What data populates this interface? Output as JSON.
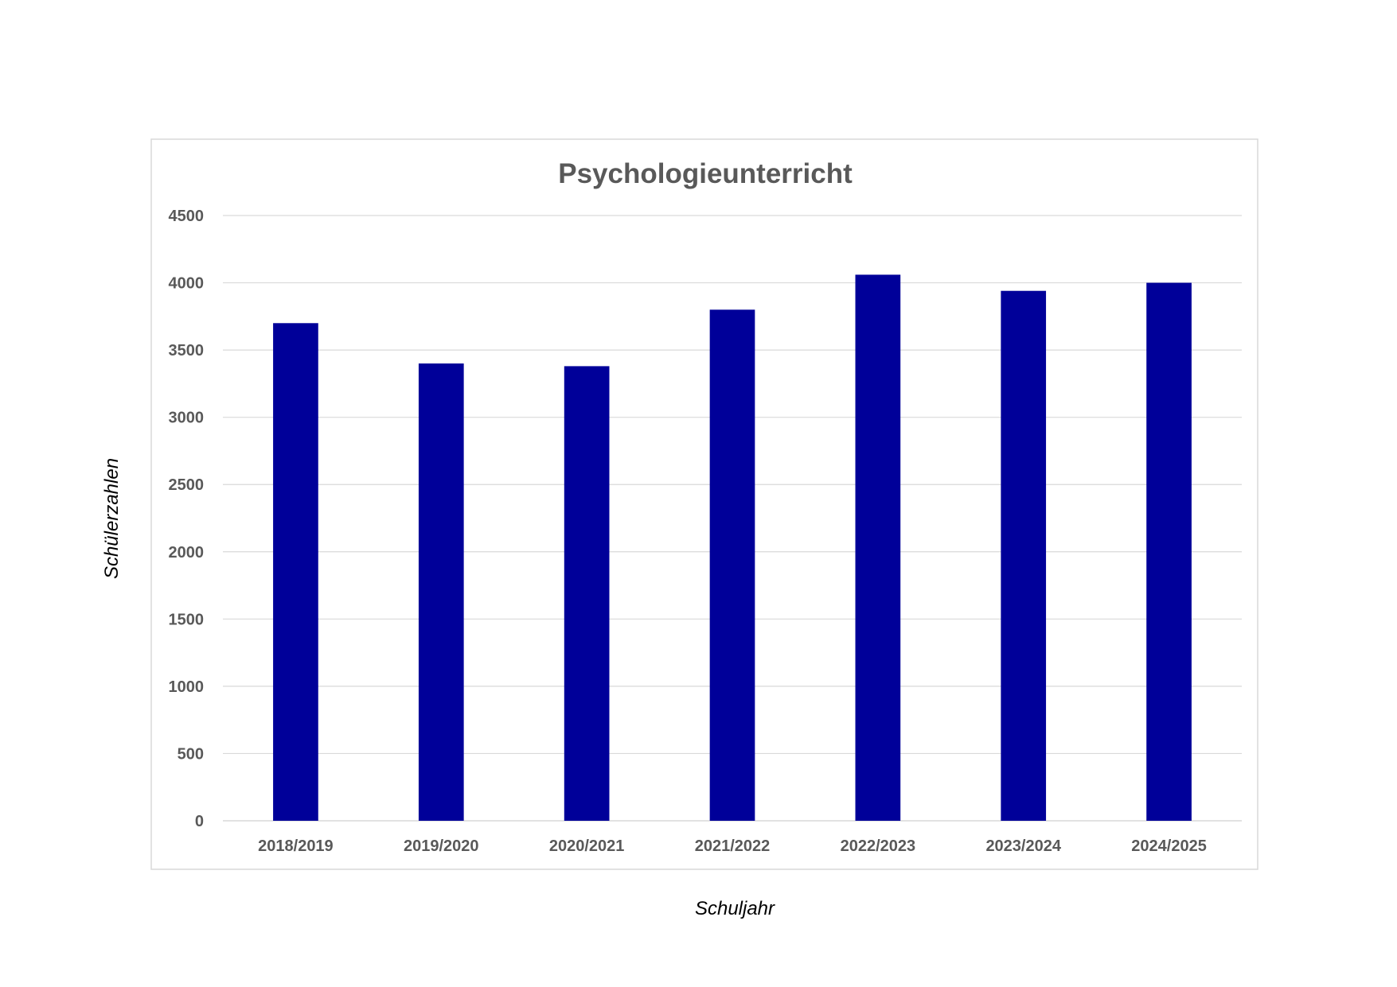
{
  "chart_data": {
    "type": "bar",
    "title": "Psychologieunterricht",
    "xlabel": "Schuljahr",
    "ylabel": "Schülerzahlen",
    "categories": [
      "2018/2019",
      "2019/2020",
      "2020/2021",
      "2021/2022",
      "2022/2023",
      "2023/2024",
      "2024/2025"
    ],
    "values": [
      3700,
      3400,
      3380,
      3800,
      4060,
      3940,
      4000
    ],
    "ylim": [
      0,
      4500
    ],
    "yticks": [
      "0",
      "500",
      "1000",
      "1500",
      "2000",
      "2500",
      "3000",
      "3500",
      "4000",
      "4500"
    ],
    "grid": true,
    "legend": "none",
    "bar_color": "#000099",
    "grid_color": "#d9d9d9"
  }
}
